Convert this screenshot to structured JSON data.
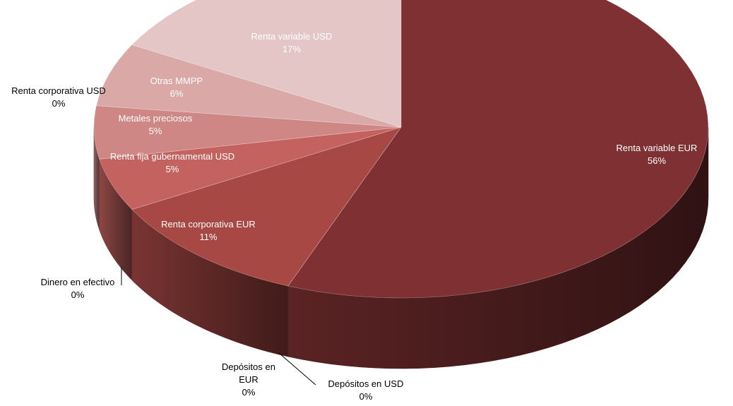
{
  "chart_data": {
    "type": "pie",
    "title": "",
    "slices": [
      {
        "label": "Renta variable EUR",
        "value": 56,
        "pct_text": "56%",
        "color": "#7F3032"
      },
      {
        "label": "Depósitos en USD",
        "value": 0,
        "pct_text": "0%",
        "color": "#8A3436"
      },
      {
        "label": "Depósitos en EUR",
        "value": 0,
        "pct_text": "0%",
        "color": "#953A3B"
      },
      {
        "label": "Renta corporativa EUR",
        "value": 11,
        "pct_text": "11%",
        "color": "#A84845"
      },
      {
        "label": "Dinero en efectivo",
        "value": 0,
        "pct_text": "0%",
        "color": "#B85552"
      },
      {
        "label": "Renta fija gubernamental USD",
        "value": 5,
        "pct_text": "5%",
        "color": "#C4625F"
      },
      {
        "label": "Metales preciosos",
        "value": 5,
        "pct_text": "5%",
        "color": "#CF8785"
      },
      {
        "label": "Renta corporativa USD",
        "value": 0,
        "pct_text": "0%",
        "color": "#D59896"
      },
      {
        "label": "Otras MMPP",
        "value": 6,
        "pct_text": "6%",
        "color": "#D9A8A7"
      },
      {
        "label": "Renta variable USD",
        "value": 17,
        "pct_text": "17%",
        "color": "#E4C6C6"
      }
    ]
  }
}
